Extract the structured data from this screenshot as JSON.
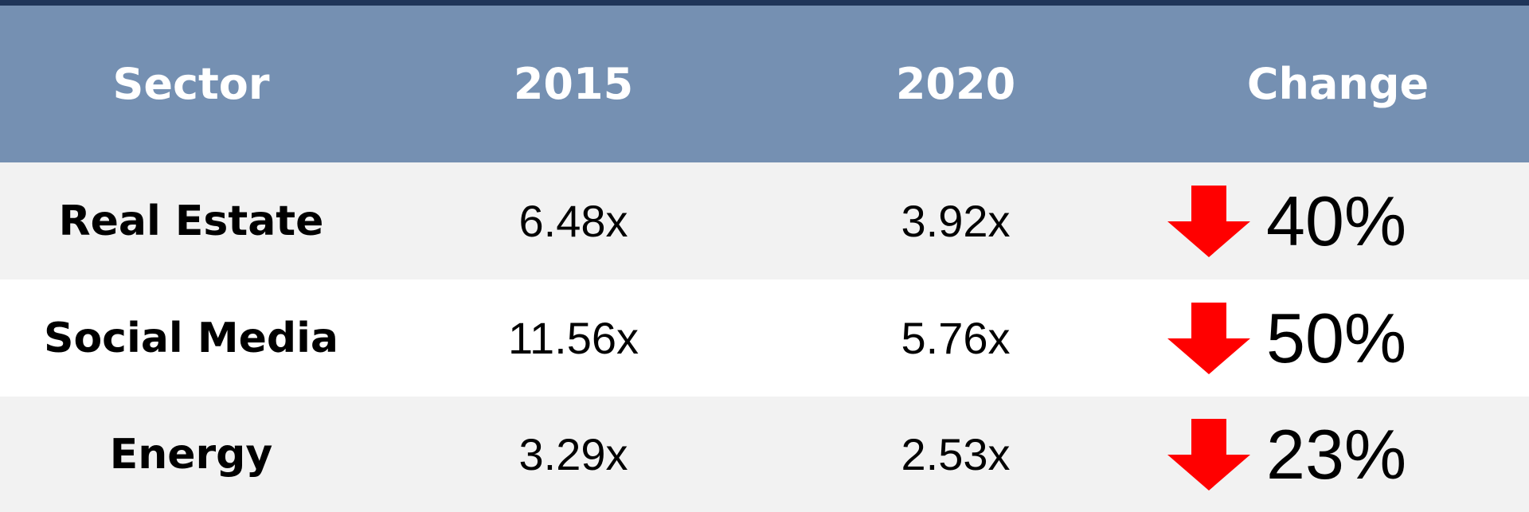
{
  "table": {
    "header": [
      "Sector",
      "2015",
      "2020",
      "Change"
    ],
    "rows": [
      [
        "Real Estate",
        "6.48x",
        "3.92x",
        "40%"
      ],
      [
        "Social Media",
        "11.56x",
        "5.76x",
        "50%"
      ],
      [
        "Energy",
        "3.29x",
        "2.53x",
        "23%"
      ]
    ]
  }
}
